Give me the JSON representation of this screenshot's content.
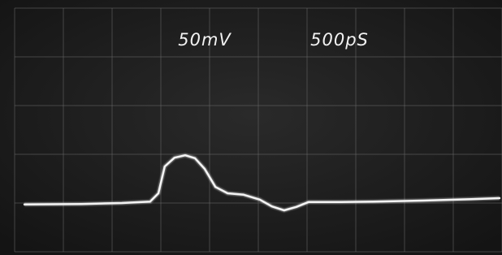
{
  "chart_data": {
    "type": "line",
    "annotations": [
      "50mV",
      "500pS"
    ],
    "x": [
      0.2,
      1.37,
      2.2,
      2.78,
      2.95,
      3.08,
      3.28,
      3.5,
      3.7,
      3.9,
      4.12,
      4.37,
      4.7,
      5.03,
      5.28,
      5.53,
      5.78,
      6.03,
      6.7,
      7.37,
      8.37,
      9.37,
      9.95
    ],
    "values": [
      0.97,
      0.98,
      1.0,
      1.03,
      1.2,
      1.75,
      1.93,
      1.98,
      1.92,
      1.7,
      1.33,
      1.2,
      1.17,
      1.07,
      0.93,
      0.85,
      0.92,
      1.02,
      1.02,
      1.03,
      1.05,
      1.08,
      1.1
    ],
    "color": "#f4f4f4",
    "xlim": [
      0,
      10
    ],
    "ylim": [
      0,
      5
    ],
    "xticks": [
      0,
      1,
      2,
      3,
      4,
      5,
      6,
      7,
      8,
      9,
      10
    ],
    "yticks": [
      0,
      1,
      2,
      3,
      4,
      5
    ],
    "grid": true
  }
}
